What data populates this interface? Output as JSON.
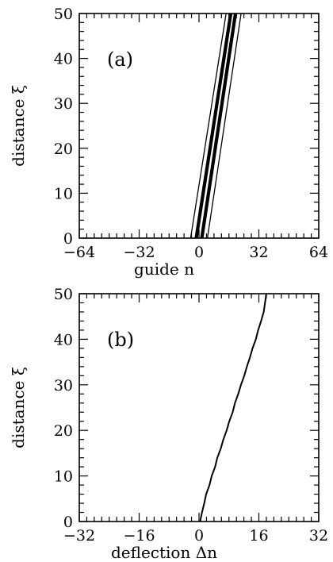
{
  "chart_data": [
    {
      "type": "line",
      "panel_label": "(a)",
      "xlabel": "guide n",
      "ylabel": "distance ξ",
      "xlim": [
        -64,
        64
      ],
      "ylim": [
        0,
        50
      ],
      "xticks": [
        -64,
        -32,
        0,
        32,
        64
      ],
      "yticks": [
        0,
        10,
        20,
        30,
        40,
        50
      ],
      "xtick_labels": [
        "−64",
        "−32",
        "0",
        "32",
        "64"
      ],
      "ytick_labels": [
        "0",
        "10",
        "20",
        "30",
        "40",
        "50"
      ],
      "xminor_step": 4,
      "yminor_step": 2,
      "grid": false,
      "series": [
        {
          "style": "thin",
          "x": [
            -4.5,
            14.5
          ],
          "y": [
            0,
            50
          ]
        },
        {
          "style": "thick",
          "x": [
            -1.5,
            17
          ],
          "y": [
            0,
            50
          ]
        },
        {
          "style": "thick",
          "x": [
            1.5,
            19.5
          ],
          "y": [
            0,
            50
          ]
        },
        {
          "style": "thin",
          "x": [
            4.5,
            22.5
          ],
          "y": [
            0,
            50
          ]
        }
      ]
    },
    {
      "type": "line",
      "panel_label": "(b)",
      "xlabel": "deflection Δn",
      "ylabel": "distance ξ",
      "xlim": [
        -32,
        32
      ],
      "ylim": [
        0,
        50
      ],
      "xticks": [
        -32,
        -16,
        0,
        16,
        32
      ],
      "yticks": [
        0,
        10,
        20,
        30,
        40,
        50
      ],
      "xtick_labels": [
        "−32",
        "−16",
        "0",
        "16",
        "32"
      ],
      "ytick_labels": [
        "0",
        "10",
        "20",
        "30",
        "40",
        "50"
      ],
      "xminor_step": 2,
      "yminor_step": 2,
      "grid": false,
      "series": [
        {
          "style": "medium",
          "x": [
            0.3,
            0.8,
            1.4,
            1.9,
            2.8,
            3.4,
            4.3,
            4.9,
            5.8,
            6.5,
            7.4,
            8.1,
            9.0,
            9.6,
            10.5,
            11.2,
            12.1,
            12.8,
            13.6,
            14.3,
            15.2,
            15.8,
            16.6,
            17.3,
            18.0
          ],
          "y": [
            0,
            2,
            4,
            6,
            8,
            10,
            12,
            14,
            16,
            18,
            20,
            22,
            24,
            26,
            28,
            30,
            32,
            34,
            36,
            38,
            40,
            42,
            44,
            46,
            50
          ]
        }
      ]
    }
  ]
}
